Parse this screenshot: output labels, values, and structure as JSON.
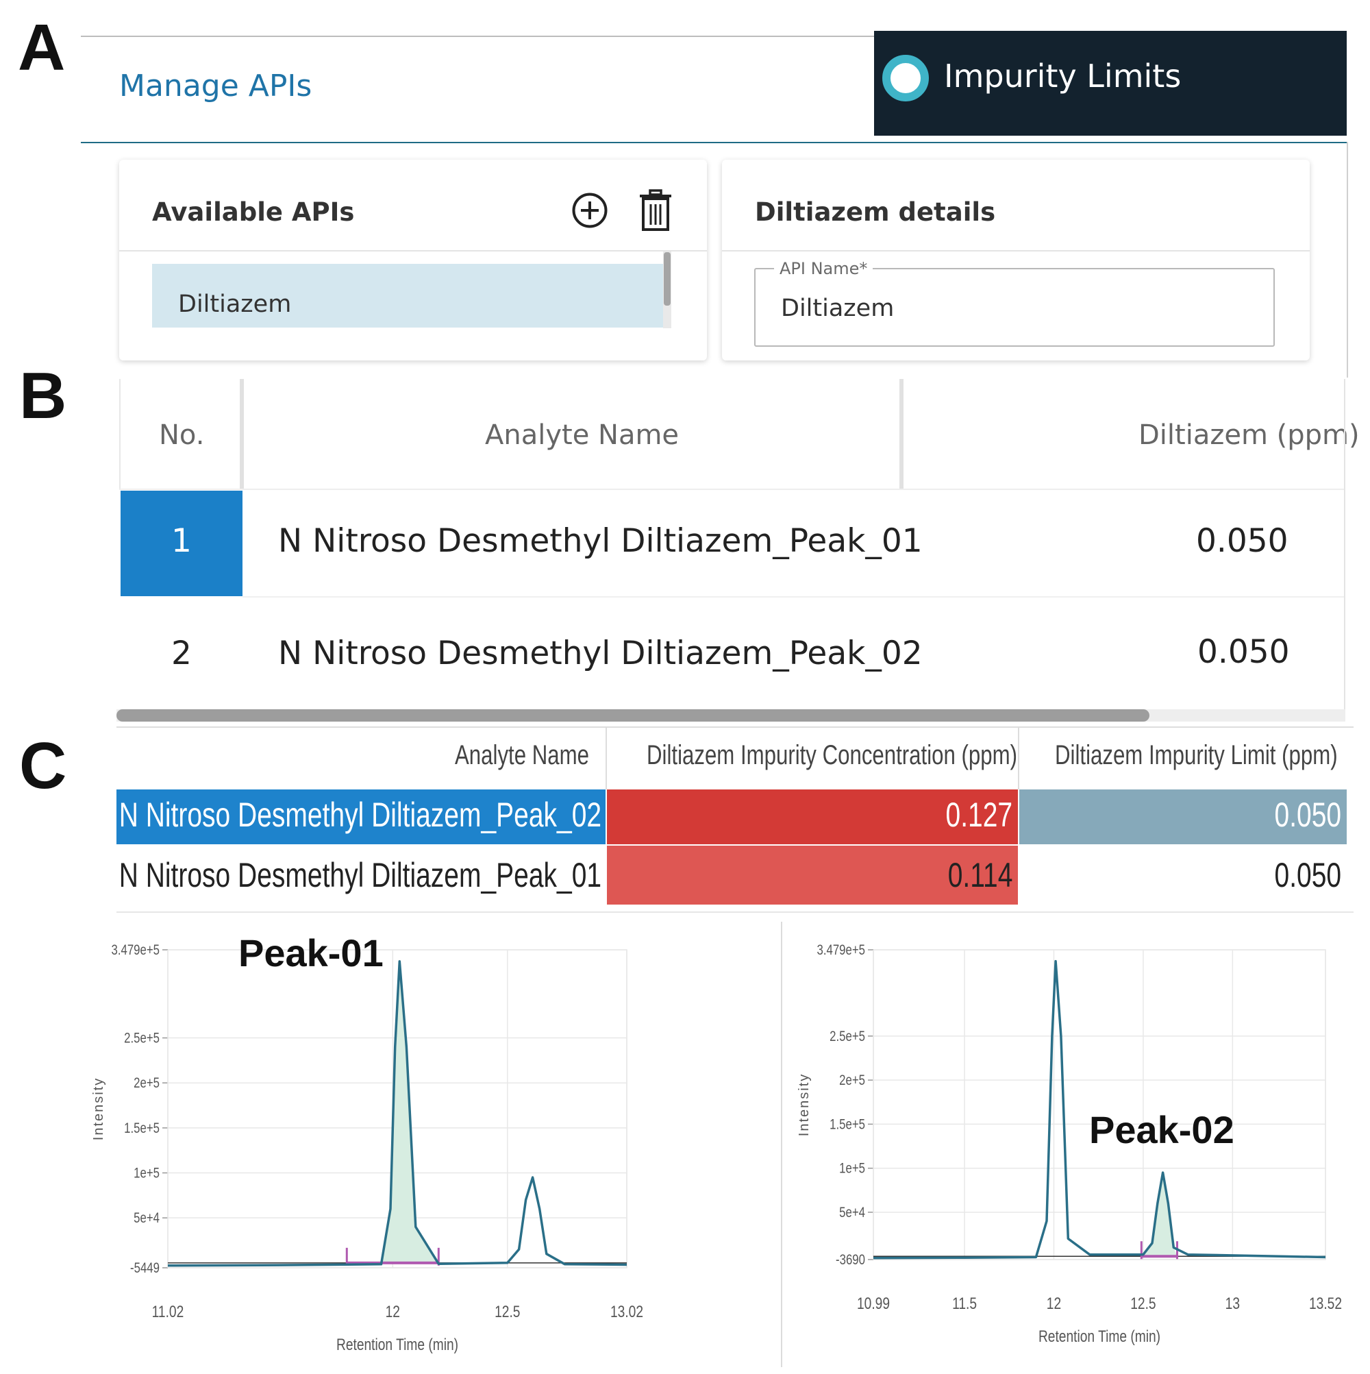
{
  "panel_labels": {
    "a": "A",
    "b": "B",
    "c": "C"
  },
  "header": {
    "title": "Manage APIs",
    "banner_label": "Impurity Limits"
  },
  "available_apis": {
    "title": "Available APIs",
    "add_icon": "plus-circle-icon",
    "delete_icon": "trash-icon",
    "items": [
      "Diltiazem"
    ],
    "selected_index": 0
  },
  "details": {
    "title": "Diltiazem details",
    "api_name_label": "API Name*",
    "api_name_value": "Diltiazem"
  },
  "limits_table": {
    "headers": {
      "no": "No.",
      "analyte": "Analyte Name",
      "limit": "Diltiazem (ppm)"
    },
    "rows": [
      {
        "no": "1",
        "analyte": "N Nitroso Desmethyl Diltiazem_Peak_01",
        "limit": "0.050"
      },
      {
        "no": "2",
        "analyte": "N Nitroso Desmethyl Diltiazem_Peak_02",
        "limit": "0.050"
      }
    ],
    "selected_row": 1
  },
  "results_table": {
    "headers": {
      "analyte": "Analyte Name",
      "concentration": "Diltiazem Impurity Concentration (ppm)",
      "limit": "Diltiazem Impurity Limit (ppm)"
    },
    "rows": [
      {
        "analyte": "N Nitroso Desmethyl Diltiazem_Peak_02",
        "concentration": "0.127",
        "limit": "0.050"
      },
      {
        "analyte": "N Nitroso Desmethyl Diltiazem_Peak_01",
        "concentration": "0.114",
        "limit": "0.050"
      }
    ],
    "colors": {
      "selected": "#1e83cc",
      "exceeded_dark": "#d33a36",
      "exceeded_light": "#de5753",
      "limit_selected": "#86a9ba"
    }
  },
  "chart_data": [
    {
      "type": "line",
      "annotation": "Peak-01",
      "xlabel": "Retention Time (min)",
      "ylabel": "Intensity",
      "xlim": [
        11.02,
        13.02
      ],
      "ylim": [
        -5449,
        347900
      ],
      "x_ticks": [
        "11.02",
        "12",
        "12.5",
        "13.02"
      ],
      "y_ticks": [
        "3.479e+5",
        "2.5e+5",
        "2e+5",
        "1.5e+5",
        "1e+5",
        "5e+4",
        "-5449"
      ],
      "series": [
        {
          "x": [
            11.02,
            11.5,
            11.95,
            11.99,
            12.01,
            12.03,
            12.06,
            12.1,
            12.2,
            12.5,
            12.55,
            12.58,
            12.61,
            12.64,
            12.67,
            12.75,
            13.02
          ],
          "values": [
            -3000,
            -2500,
            -1500,
            60000,
            240000,
            335000,
            240000,
            40000,
            -1000,
            0,
            15000,
            70000,
            95000,
            60000,
            10000,
            -1500,
            -2000
          ]
        }
      ],
      "integration_window": [
        11.8,
        12.2
      ],
      "colors": {
        "trace": "#2a6f88",
        "fill": "#d7ede1",
        "baseline": "#b05ab0"
      }
    },
    {
      "type": "line",
      "annotation": "Peak-02",
      "xlabel": "Retention Time (min)",
      "ylabel": "Intensity",
      "xlim": [
        10.99,
        13.52
      ],
      "ylim": [
        -3690,
        347900
      ],
      "x_ticks": [
        "10.99",
        "11.5",
        "12",
        "12.5",
        "13",
        "13.52"
      ],
      "y_ticks": [
        "3.479e+5",
        "2.5e+5",
        "2e+5",
        "1.5e+5",
        "1e+5",
        "5e+4",
        "-3690"
      ],
      "series": [
        {
          "x": [
            10.99,
            11.5,
            11.9,
            11.96,
            11.99,
            12.01,
            12.04,
            12.08,
            12.2,
            12.5,
            12.55,
            12.58,
            12.61,
            12.64,
            12.67,
            12.75,
            13.52
          ],
          "values": [
            -2000,
            -1500,
            -1000,
            40000,
            250000,
            335000,
            250000,
            20000,
            2000,
            2000,
            15000,
            60000,
            95000,
            60000,
            10000,
            2000,
            -1000
          ]
        }
      ],
      "integration_window": [
        12.49,
        12.69
      ],
      "colors": {
        "trace": "#2a6f88",
        "fill": "#d7ede1",
        "baseline": "#b05ab0"
      }
    }
  ]
}
